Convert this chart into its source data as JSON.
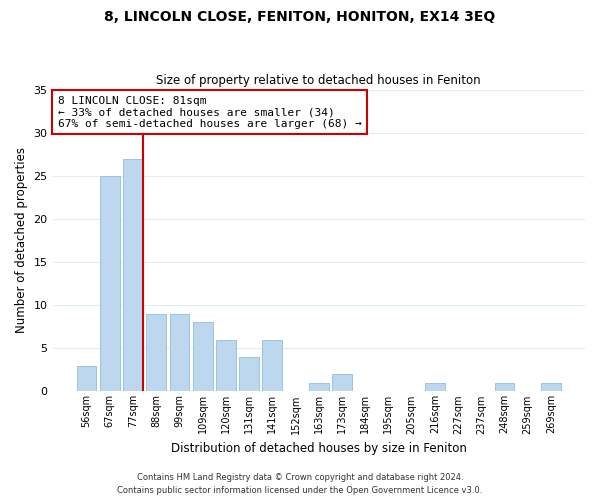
{
  "title": "8, LINCOLN CLOSE, FENITON, HONITON, EX14 3EQ",
  "subtitle": "Size of property relative to detached houses in Feniton",
  "xlabel": "Distribution of detached houses by size in Feniton",
  "ylabel": "Number of detached properties",
  "bar_labels": [
    "56sqm",
    "67sqm",
    "77sqm",
    "88sqm",
    "99sqm",
    "109sqm",
    "120sqm",
    "131sqm",
    "141sqm",
    "152sqm",
    "163sqm",
    "173sqm",
    "184sqm",
    "195sqm",
    "205sqm",
    "216sqm",
    "227sqm",
    "237sqm",
    "248sqm",
    "259sqm",
    "269sqm"
  ],
  "bar_values": [
    3,
    25,
    27,
    9,
    9,
    8,
    6,
    4,
    6,
    0,
    1,
    2,
    0,
    0,
    0,
    1,
    0,
    0,
    1,
    0,
    1
  ],
  "bar_color": "#BDD7EE",
  "bar_edge_color": "#9DC3E0",
  "vline_index": 2,
  "vline_color": "#CC0000",
  "annotation_title": "8 LINCOLN CLOSE: 81sqm",
  "annotation_line1": "← 33% of detached houses are smaller (34)",
  "annotation_line2": "67% of semi-detached houses are larger (68) →",
  "annotation_box_facecolor": "#FFFFFF",
  "annotation_box_edgecolor": "#CC0000",
  "ylim": [
    0,
    35
  ],
  "yticks": [
    0,
    5,
    10,
    15,
    20,
    25,
    30,
    35
  ],
  "footer_line1": "Contains HM Land Registry data © Crown copyright and database right 2024.",
  "footer_line2": "Contains public sector information licensed under the Open Government Licence v3.0.",
  "background_color": "#FFFFFF",
  "grid_color": "#DDEEF8"
}
